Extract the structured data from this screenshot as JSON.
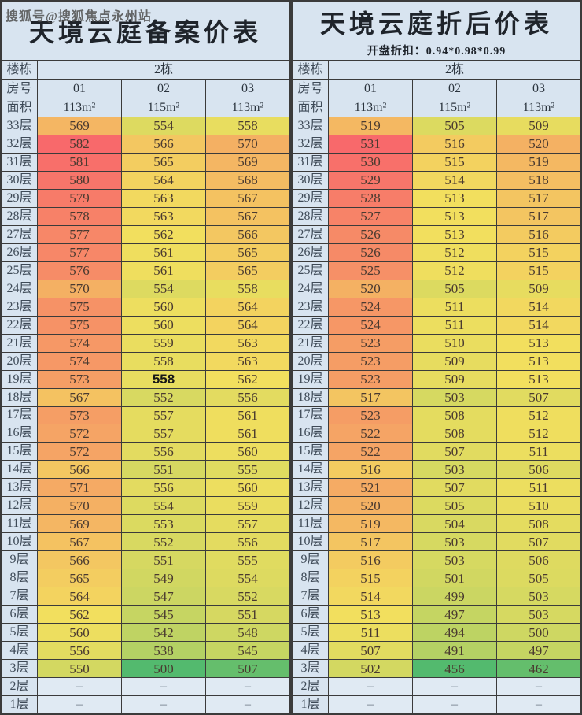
{
  "watermark": "搜狐号@搜狐焦点永州站",
  "colors": {
    "page_bg": "#ccdcea",
    "panel_bg": "#d8e4f0",
    "dash_bg": "#e0eaf3",
    "border": "#3b3b3b",
    "title_text": "#1f242b",
    "header_text": "#2b343e",
    "label_text": "#3e4a57",
    "number_text": "#4a3a30",
    "dash_text": "#6b7683",
    "watermark_text": "#4f4f4f",
    "scale_low": "#53ba6e",
    "scale_mid": "#f2df5e",
    "scale_high": "#f8696b"
  },
  "tables": [
    {
      "title": "天境云庭备案价表",
      "subtitle": "",
      "building_label": "楼栋",
      "building_value": "2栋",
      "room_label": "房号",
      "rooms": [
        "01",
        "02",
        "03"
      ],
      "area_label": "面积",
      "areas": [
        "113m²",
        "115m²",
        "113m²"
      ],
      "floors": [
        "33层",
        "32层",
        "31层",
        "30层",
        "29层",
        "28层",
        "27层",
        "26层",
        "25层",
        "24层",
        "23层",
        "22层",
        "21层",
        "20层",
        "19层",
        "18层",
        "17层",
        "16层",
        "15层",
        "14层",
        "13层",
        "12层",
        "11层",
        "10层",
        "9层",
        "8层",
        "7层",
        "6层",
        "5层",
        "4层",
        "3层",
        "2层",
        "1层"
      ],
      "rows": [
        [
          569,
          554,
          558
        ],
        [
          582,
          566,
          570
        ],
        [
          581,
          565,
          569
        ],
        [
          580,
          564,
          568
        ],
        [
          579,
          563,
          567
        ],
        [
          578,
          563,
          567
        ],
        [
          577,
          562,
          566
        ],
        [
          577,
          561,
          565
        ],
        [
          576,
          561,
          565
        ],
        [
          570,
          554,
          558
        ],
        [
          575,
          560,
          564
        ],
        [
          575,
          560,
          564
        ],
        [
          574,
          559,
          563
        ],
        [
          574,
          558,
          563
        ],
        [
          573,
          558,
          562
        ],
        [
          567,
          552,
          556
        ],
        [
          573,
          557,
          561
        ],
        [
          572,
          557,
          561
        ],
        [
          572,
          556,
          560
        ],
        [
          566,
          551,
          555
        ],
        [
          571,
          556,
          560
        ],
        [
          570,
          554,
          559
        ],
        [
          569,
          553,
          557
        ],
        [
          567,
          552,
          556
        ],
        [
          566,
          551,
          555
        ],
        [
          565,
          549,
          554
        ],
        [
          564,
          547,
          552
        ],
        [
          562,
          545,
          551
        ],
        [
          560,
          542,
          548
        ],
        [
          556,
          538,
          545
        ],
        [
          550,
          500,
          507
        ],
        [
          "–",
          "–",
          "–"
        ],
        [
          "–",
          "–",
          "–"
        ]
      ],
      "bold_cell": {
        "row": 14,
        "col": 1
      }
    },
    {
      "title": "天境云庭折后价表",
      "subtitle": "开盘折扣：0.94*0.98*0.99",
      "building_label": "楼栋",
      "building_value": "2栋",
      "room_label": "房号",
      "rooms": [
        "01",
        "02",
        "03"
      ],
      "area_label": "面积",
      "areas": [
        "113m²",
        "115m²",
        "113m²"
      ],
      "floors": [
        "33层",
        "32层",
        "31层",
        "30层",
        "29层",
        "28层",
        "27层",
        "26层",
        "25层",
        "24层",
        "23层",
        "22层",
        "21层",
        "20层",
        "19层",
        "18层",
        "17层",
        "16层",
        "15层",
        "14层",
        "13层",
        "12层",
        "11层",
        "10层",
        "9层",
        "8层",
        "7层",
        "6层",
        "5层",
        "4层",
        "3层",
        "2层",
        "1层"
      ],
      "rows": [
        [
          519,
          505,
          509
        ],
        [
          531,
          516,
          520
        ],
        [
          530,
          515,
          519
        ],
        [
          529,
          514,
          518
        ],
        [
          528,
          513,
          517
        ],
        [
          527,
          513,
          517
        ],
        [
          526,
          513,
          516
        ],
        [
          526,
          512,
          515
        ],
        [
          525,
          512,
          515
        ],
        [
          520,
          505,
          509
        ],
        [
          524,
          511,
          514
        ],
        [
          524,
          511,
          514
        ],
        [
          523,
          510,
          513
        ],
        [
          523,
          509,
          513
        ],
        [
          523,
          509,
          513
        ],
        [
          517,
          503,
          507
        ],
        [
          523,
          508,
          512
        ],
        [
          522,
          508,
          512
        ],
        [
          522,
          507,
          511
        ],
        [
          516,
          503,
          506
        ],
        [
          521,
          507,
          511
        ],
        [
          520,
          505,
          510
        ],
        [
          519,
          504,
          508
        ],
        [
          517,
          503,
          507
        ],
        [
          516,
          503,
          506
        ],
        [
          515,
          501,
          505
        ],
        [
          514,
          499,
          503
        ],
        [
          513,
          497,
          503
        ],
        [
          511,
          494,
          500
        ],
        [
          507,
          491,
          497
        ],
        [
          502,
          456,
          462
        ],
        [
          "–",
          "–",
          "–"
        ],
        [
          "–",
          "–",
          "–"
        ]
      ],
      "bold_cell": null
    }
  ]
}
